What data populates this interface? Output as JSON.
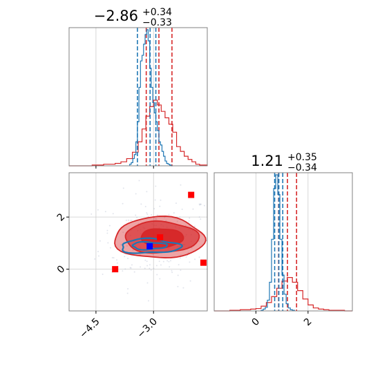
{
  "colors": {
    "red": "#d62728",
    "blue": "#1f77b4",
    "marker_red": "#ff0000",
    "marker_blue": "#0000ff",
    "grid": "#cccccc",
    "axes": "#808080"
  },
  "chart_data": [
    {
      "type": "histogram",
      "panel": "top-left",
      "title": {
        "value": "−2.86",
        "plus": "+0.34",
        "minus": "−0.33"
      },
      "xlim": [
        -5.2,
        -1.6
      ],
      "grid": true,
      "series": [
        {
          "color": "#d62728",
          "quantile_lines": [
            -3.19,
            -2.86,
            -2.52
          ],
          "bin_edges": [
            -5.2,
            -5.05,
            -4.9,
            -4.75,
            -4.6,
            -4.45,
            -4.3,
            -4.15,
            -4.0,
            -3.85,
            -3.7,
            -3.55,
            -3.4,
            -3.3,
            -3.2,
            -3.1,
            -3.0,
            -2.9,
            -2.8,
            -2.7,
            -2.6,
            -2.5,
            -2.4,
            -2.3,
            -2.2,
            -2.1,
            -2.0,
            -1.9,
            -1.8,
            -1.7,
            -1.6
          ],
          "counts": [
            0,
            0,
            0,
            0,
            1,
            1,
            2,
            2,
            3,
            5,
            9,
            17,
            30,
            46,
            62,
            74,
            82,
            76,
            68,
            60,
            52,
            42,
            24,
            18,
            12,
            8,
            5,
            2,
            1,
            1
          ]
        },
        {
          "color": "#1f77b4",
          "quantile_lines": [
            -3.42,
            -3.09,
            -2.94
          ],
          "bin_edges": [
            -3.62,
            -3.58,
            -3.54,
            -3.5,
            -3.46,
            -3.42,
            -3.38,
            -3.34,
            -3.3,
            -3.26,
            -3.22,
            -3.18,
            -3.14,
            -3.1,
            -3.06,
            -3.02,
            -2.98,
            -2.94,
            -2.9,
            -2.86,
            -2.82,
            -2.78,
            -2.74,
            -2.7,
            -2.66,
            -2.62,
            -2.58,
            -2.54,
            -2.5
          ],
          "counts": [
            2,
            4,
            9,
            14,
            30,
            55,
            98,
            131,
            138,
            152,
            164,
            170,
            156,
            122,
            98,
            79,
            66,
            55,
            44,
            30,
            26,
            18,
            12,
            6,
            3,
            2,
            1,
            0
          ]
        }
      ]
    },
    {
      "type": "contour",
      "panel": "bottom-left",
      "xlim": [
        -5.2,
        -1.6
      ],
      "ylim": [
        -1.6,
        3.7
      ],
      "xticks": [
        "−4.5",
        "−3.0"
      ],
      "xtick_values": [
        -4.5,
        -3.0
      ],
      "yticks": [
        "0",
        "2"
      ],
      "ytick_values": [
        0,
        2
      ],
      "grid": true,
      "red_contours": [
        {
          "level": "outer",
          "cx": -2.85,
          "cy": 1.2,
          "rx": 1.17,
          "ry": 0.79
        },
        {
          "level": "middle",
          "cx": -2.8,
          "cy": 1.22,
          "rx": 0.96,
          "ry": 0.6
        },
        {
          "level": "inner",
          "cx": -2.78,
          "cy": 1.2,
          "rx": 0.55,
          "ry": 0.36
        }
      ],
      "blue_contours": [
        {
          "level": "outer",
          "cx": -3.1,
          "cy": 0.88,
          "rx": 0.77,
          "ry": 0.27
        },
        {
          "level": "inner",
          "cx": -3.12,
          "cy": 0.9,
          "rx": 0.45,
          "ry": 0.14
        }
      ],
      "markers": [
        {
          "x": -2.02,
          "y": 2.85,
          "color": "#ff0000"
        },
        {
          "x": -1.7,
          "y": 0.25,
          "color": "#ff0000"
        },
        {
          "x": -4.0,
          "y": 0.0,
          "color": "#ff0000"
        },
        {
          "x": -3.1,
          "y": 0.88,
          "color": "#0000ff"
        },
        {
          "x": -2.83,
          "y": 1.22,
          "color": "#ff0000"
        }
      ]
    },
    {
      "type": "histogram",
      "panel": "bottom-right",
      "title": {
        "value": "1.21",
        "plus": "+0.35",
        "minus": "−0.34"
      },
      "xlim": [
        -1.6,
        3.7
      ],
      "xticks": [
        "0",
        "2"
      ],
      "xtick_values": [
        0,
        2
      ],
      "grid": true,
      "series": [
        {
          "color": "#d62728",
          "quantile_lines": [
            0.87,
            1.21,
            1.56
          ],
          "bin_edges": [
            -1.6,
            -1.4,
            -1.2,
            -1.0,
            -0.8,
            -0.6,
            -0.4,
            -0.2,
            0.0,
            0.2,
            0.4,
            0.6,
            0.8,
            1.0,
            1.2,
            1.4,
            1.6,
            1.8,
            2.0,
            2.2,
            2.4,
            2.6,
            2.8,
            3.0,
            3.2,
            3.4,
            3.7
          ],
          "counts": [
            0,
            0,
            0,
            1,
            1,
            2,
            2,
            3,
            4,
            8,
            14,
            24,
            38,
            50,
            56,
            48,
            34,
            20,
            10,
            5,
            3,
            2,
            1,
            1,
            1,
            0
          ]
        },
        {
          "color": "#1f77b4",
          "quantile_lines": [
            0.72,
            0.88,
            1.03
          ],
          "bin_edges": [
            0.2,
            0.28,
            0.36,
            0.44,
            0.52,
            0.6,
            0.68,
            0.76,
            0.84,
            0.92,
            1.0,
            1.08,
            1.16,
            1.24,
            1.32,
            1.4,
            1.48
          ],
          "counts": [
            1,
            3,
            6,
            18,
            48,
            120,
            205,
            228,
            195,
            120,
            60,
            28,
            12,
            5,
            2,
            1
          ]
        }
      ]
    }
  ]
}
